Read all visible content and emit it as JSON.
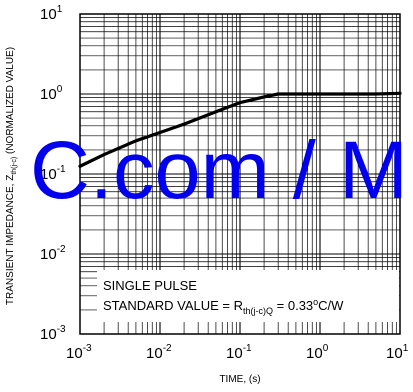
{
  "chart_data": {
    "type": "line",
    "x_scale": "log",
    "y_scale": "log",
    "xlim": [
      0.001,
      10
    ],
    "ylim": [
      0.001,
      10
    ],
    "xlabel": "TIME, (s)",
    "ylabel": {
      "prefix": "TRANSIENT  IMPEDANCE, Z",
      "sub": "th(j-c)",
      "suffix": " (NORMALIZED VALUE)"
    },
    "x_ticks": [
      {
        "base": "10",
        "exp": "-3",
        "value": 0.001
      },
      {
        "base": "10",
        "exp": "-2",
        "value": 0.01
      },
      {
        "base": "10",
        "exp": "-1",
        "value": 0.1
      },
      {
        "base": "10",
        "exp": "0",
        "value": 1
      },
      {
        "base": "10",
        "exp": "1",
        "value": 10
      }
    ],
    "y_ticks": [
      {
        "base": "10",
        "exp": "1",
        "value": 10
      },
      {
        "base": "10",
        "exp": "0",
        "value": 1
      },
      {
        "base": "10",
        "exp": "-1",
        "value": 0.1
      },
      {
        "base": "10",
        "exp": "-2",
        "value": 0.01
      },
      {
        "base": "10",
        "exp": "-3",
        "value": 0.001
      }
    ],
    "grid": true,
    "series": [
      {
        "color": "#000000",
        "x": [
          0.001,
          0.002,
          0.005,
          0.01,
          0.02,
          0.05,
          0.1,
          0.2,
          0.3,
          0.5,
          1,
          2,
          5,
          10
        ],
        "y": [
          0.125,
          0.175,
          0.26,
          0.33,
          0.42,
          0.6,
          0.78,
          0.92,
          1.0,
          1.0,
          1.0,
          1.0,
          1.0,
          1.02
        ]
      }
    ],
    "annotation": {
      "line1": "SINGLE PULSE",
      "line2_prefix": "STANDARD VALUE = R",
      "line2_sub": "th(j-c)Q",
      "line2_value": " = 0.33",
      "line2_sup": "o",
      "line2_unit": "C/W"
    }
  },
  "watermark": {
    "text": "C.com / M",
    "color": "#0000ee"
  }
}
